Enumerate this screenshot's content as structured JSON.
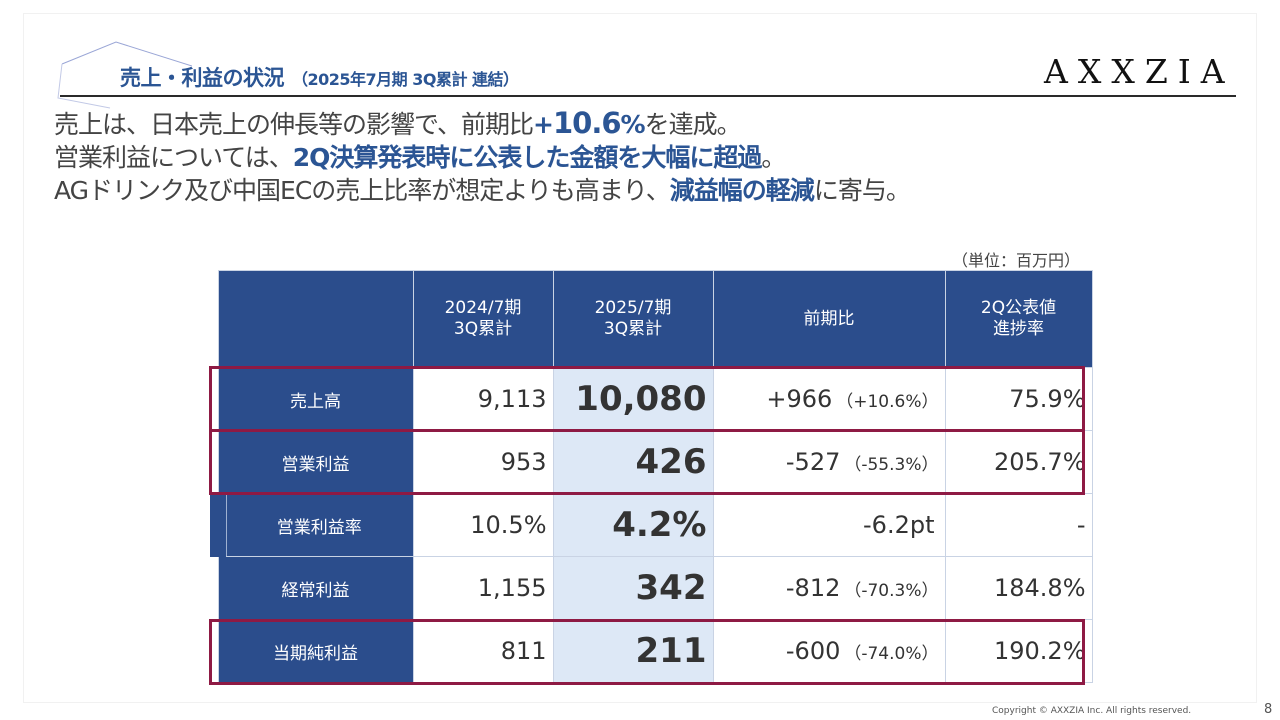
{
  "header": {
    "title": "売上・利益の状況",
    "subtitle": "（2025年7月期 3Q累計 連結）",
    "logo_text": "AXXZIA"
  },
  "summary": {
    "line1": {
      "a": "売上は、日本売上の伸長等の影響で、前期比",
      "b": "+",
      "c": "10.6",
      "d": "%",
      "e": "を達成。"
    },
    "line2": {
      "a": "営業利益については、",
      "b": "2Q決算発表時に公表した金額を大幅に超過",
      "c": "。"
    },
    "line3": {
      "a": "AGドリンク及び中国ECの売上比率が想定よりも高まり、",
      "b": "減益幅の軽減",
      "c": "に寄与。"
    }
  },
  "unit_note": "（単位：百万円）",
  "table": {
    "headers": {
      "blank": "",
      "prev_line1": "2024/7期",
      "prev_line2": "3Q累計",
      "curr_line1": "2025/7期",
      "curr_line2": "3Q累計",
      "yoy": "前期比",
      "prog_line1": "2Q公表値",
      "prog_line2": "進捗率"
    },
    "rows": [
      {
        "label": "売上高",
        "prev": "9,113",
        "curr": "10,080",
        "diff": "+966",
        "diff_pct": "（+10.6%）",
        "progress": "75.9%"
      },
      {
        "label": "営業利益",
        "prev": "953",
        "curr": "426",
        "diff": "-527",
        "diff_pct": "（-55.3%）",
        "progress": "205.7%"
      },
      {
        "label": "営業利益率",
        "prev": "10.5%",
        "curr": "4.2%",
        "diff": "-6.2pt",
        "diff_pct": "",
        "progress": "-"
      },
      {
        "label": "経常利益",
        "prev": "1,155",
        "curr": "342",
        "diff": "-812",
        "diff_pct": "（-70.3%）",
        "progress": "184.8%"
      },
      {
        "label": "当期純利益",
        "prev": "811",
        "curr": "211",
        "diff": "-600",
        "diff_pct": "（-74.0%）",
        "progress": "190.2%"
      }
    ]
  },
  "colors": {
    "accent_blue": "#2b5594",
    "header_fill": "#2b4d8c",
    "current_col_fill": "#dde8f6",
    "highlight_border": "#8e1a44"
  },
  "footer": {
    "copyright": "Copyright © AXXZIA Inc. All rights reserved.",
    "page": "8"
  }
}
